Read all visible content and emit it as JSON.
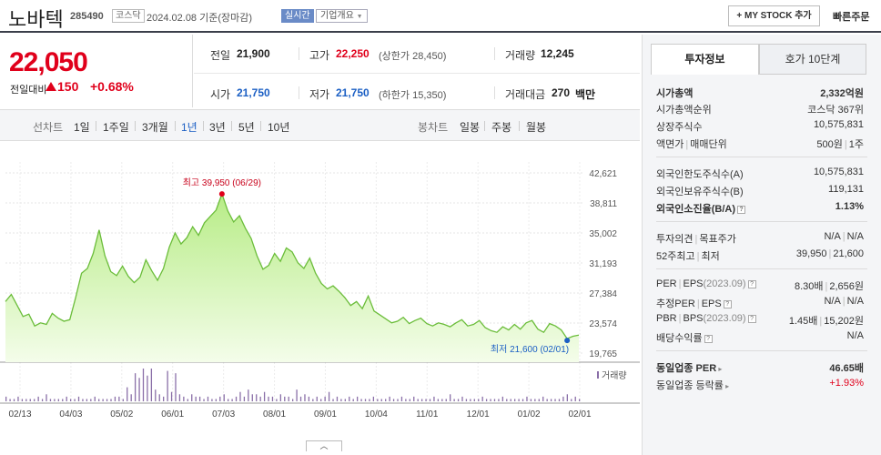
{
  "header": {
    "company_name": "노바텍",
    "company_code": "285490",
    "market": "코스닥",
    "basis_date": "2024.02.08  기준(장마감)",
    "realtime": "실시간",
    "company_overview": "기업개요",
    "mystock_button": "+ MY STOCK 추가",
    "quick_order": "빠른주문"
  },
  "price": {
    "current": "22,050",
    "change_label": "전일대비",
    "change_amount": "150",
    "change_rate": "+0.68%"
  },
  "quote": {
    "prev_close_label": "전일",
    "prev_close": "21,900",
    "high_label": "고가",
    "high": "22,250",
    "upper_limit": "(상한가 28,450)",
    "volume_label": "거래량",
    "volume": "12,245",
    "open_label": "시가",
    "open": "21,750",
    "low_label": "저가",
    "low": "21,750",
    "lower_limit": "(하한가 15,350)",
    "trade_value_label": "거래대금",
    "trade_value": "270",
    "trade_value_unit": "백만"
  },
  "period_tabs": {
    "line_label": "선차트",
    "line": [
      "1일",
      "1주일",
      "3개월",
      "1년",
      "3년",
      "5년",
      "10년"
    ],
    "active": "1년",
    "candle_label": "봉차트",
    "candle": [
      "일봉",
      "주봉",
      "월봉"
    ]
  },
  "chart_data": {
    "type": "area",
    "y_ticks": [
      "42,621",
      "38,811",
      "35,002",
      "31,193",
      "27,384",
      "23,574",
      "19,765"
    ],
    "ylim": [
      19765,
      42621
    ],
    "x_labels": [
      "02/13",
      "04/03",
      "05/02",
      "06/01",
      "07/03",
      "08/01",
      "09/01",
      "10/04",
      "11/01",
      "12/01",
      "01/02",
      "02/01"
    ],
    "values": [
      26300,
      27200,
      25800,
      24400,
      24700,
      23200,
      23600,
      23400,
      24800,
      24200,
      23800,
      24000,
      26800,
      29900,
      30500,
      32400,
      35400,
      32100,
      30100,
      29600,
      30800,
      29500,
      28700,
      29400,
      31600,
      30200,
      29000,
      30500,
      33200,
      35000,
      33600,
      34400,
      35800,
      34700,
      36300,
      37100,
      37900,
      39950,
      37800,
      36400,
      37200,
      35600,
      34300,
      32100,
      30400,
      30900,
      32400,
      31400,
      33100,
      32600,
      31200,
      30500,
      31800,
      29900,
      28600,
      27900,
      28300,
      27600,
      26800,
      25800,
      26300,
      25400,
      27000,
      25100,
      24600,
      24100,
      23600,
      23800,
      24300,
      23500,
      23900,
      24200,
      23500,
      23200,
      23600,
      23400,
      23100,
      23600,
      24000,
      23200,
      23400,
      23900,
      23000,
      22600,
      22400,
      23100,
      22700,
      23400,
      22800,
      23600,
      23900,
      22800,
      22400,
      23500,
      23200,
      22700,
      21600,
      21900,
      22050
    ],
    "high_label": "최고 39,950 (06/29)",
    "low_label": "최저 21,600 (02/01)",
    "volume_label": "거래량",
    "volume_bars": [
      2,
      1,
      1,
      2,
      1,
      1,
      1,
      1,
      2,
      1,
      3,
      1,
      1,
      1,
      1,
      2,
      1,
      1,
      2,
      1,
      1,
      1,
      2,
      1,
      1,
      1,
      1,
      2,
      2,
      1,
      6,
      3,
      12,
      10,
      14,
      11,
      14,
      5,
      3,
      2,
      13,
      4,
      12,
      3,
      2,
      1,
      3,
      2,
      2,
      1,
      2,
      1,
      1,
      2,
      3,
      1,
      1,
      2,
      4,
      2,
      5,
      3,
      3,
      2,
      4,
      2,
      2,
      1,
      3,
      2,
      2,
      1,
      5,
      2,
      3,
      2,
      1,
      2,
      1,
      2,
      4,
      1,
      2,
      1,
      1,
      2,
      1,
      2,
      1,
      1,
      1,
      2,
      1,
      1,
      1,
      2,
      1,
      1,
      2,
      1,
      1,
      2,
      1,
      1,
      1,
      1,
      2,
      1,
      1,
      1,
      3,
      1,
      1,
      2,
      1,
      1,
      1,
      1,
      2,
      1,
      1,
      1,
      1,
      2,
      1,
      1,
      1,
      1,
      1,
      2,
      1,
      1,
      1,
      2,
      1,
      1,
      1,
      1,
      2,
      3,
      1,
      2,
      1
    ]
  },
  "right_panel": {
    "tab_invest": "투자정보",
    "tab_order": "호가 10단계",
    "market_cap_label": "시가총액",
    "market_cap": "2,332억원",
    "cap_rank_label": "시가총액순위",
    "cap_rank": "코스닥 367위",
    "shares_label": "상장주식수",
    "shares": "10,575,831",
    "par_label": "액면가",
    "unit_label": "매매단위",
    "par": "500원",
    "unit": "1주",
    "foreign_limit_label": "외국인한도주식수(A)",
    "foreign_limit": "10,575,831",
    "foreign_hold_label": "외국인보유주식수(B)",
    "foreign_hold": "119,131",
    "foreign_ratio_label": "외국인소진율(B/A)",
    "foreign_ratio": "1.13%",
    "opinion_label": "투자의견",
    "target_label": "목표주가",
    "opinion": "N/A",
    "target": "N/A",
    "w52_high_label": "52주최고",
    "w52_low_label": "최저",
    "w52_high": "39,950",
    "w52_low": "21,600",
    "per_label": "PER",
    "eps_label": "EPS",
    "eps_year": "(2023.09)",
    "per": "8.30배",
    "eps": "2,656원",
    "est_per_label": "추정PER",
    "est_eps_label": "EPS",
    "est_per": "N/A",
    "est_eps": "N/A",
    "pbr_label": "PBR",
    "bps_label": "BPS",
    "bps_year": "(2023.09)",
    "pbr": "1.45배",
    "bps": "15,202원",
    "div_label": "배당수익률",
    "div": "N/A",
    "sector_per_label": "동일업종 PER",
    "sector_per": "46.65배",
    "sector_rate_label": "동일업종 등락률",
    "sector_rate": "+1.93%"
  },
  "bottom_toggle": "︿"
}
